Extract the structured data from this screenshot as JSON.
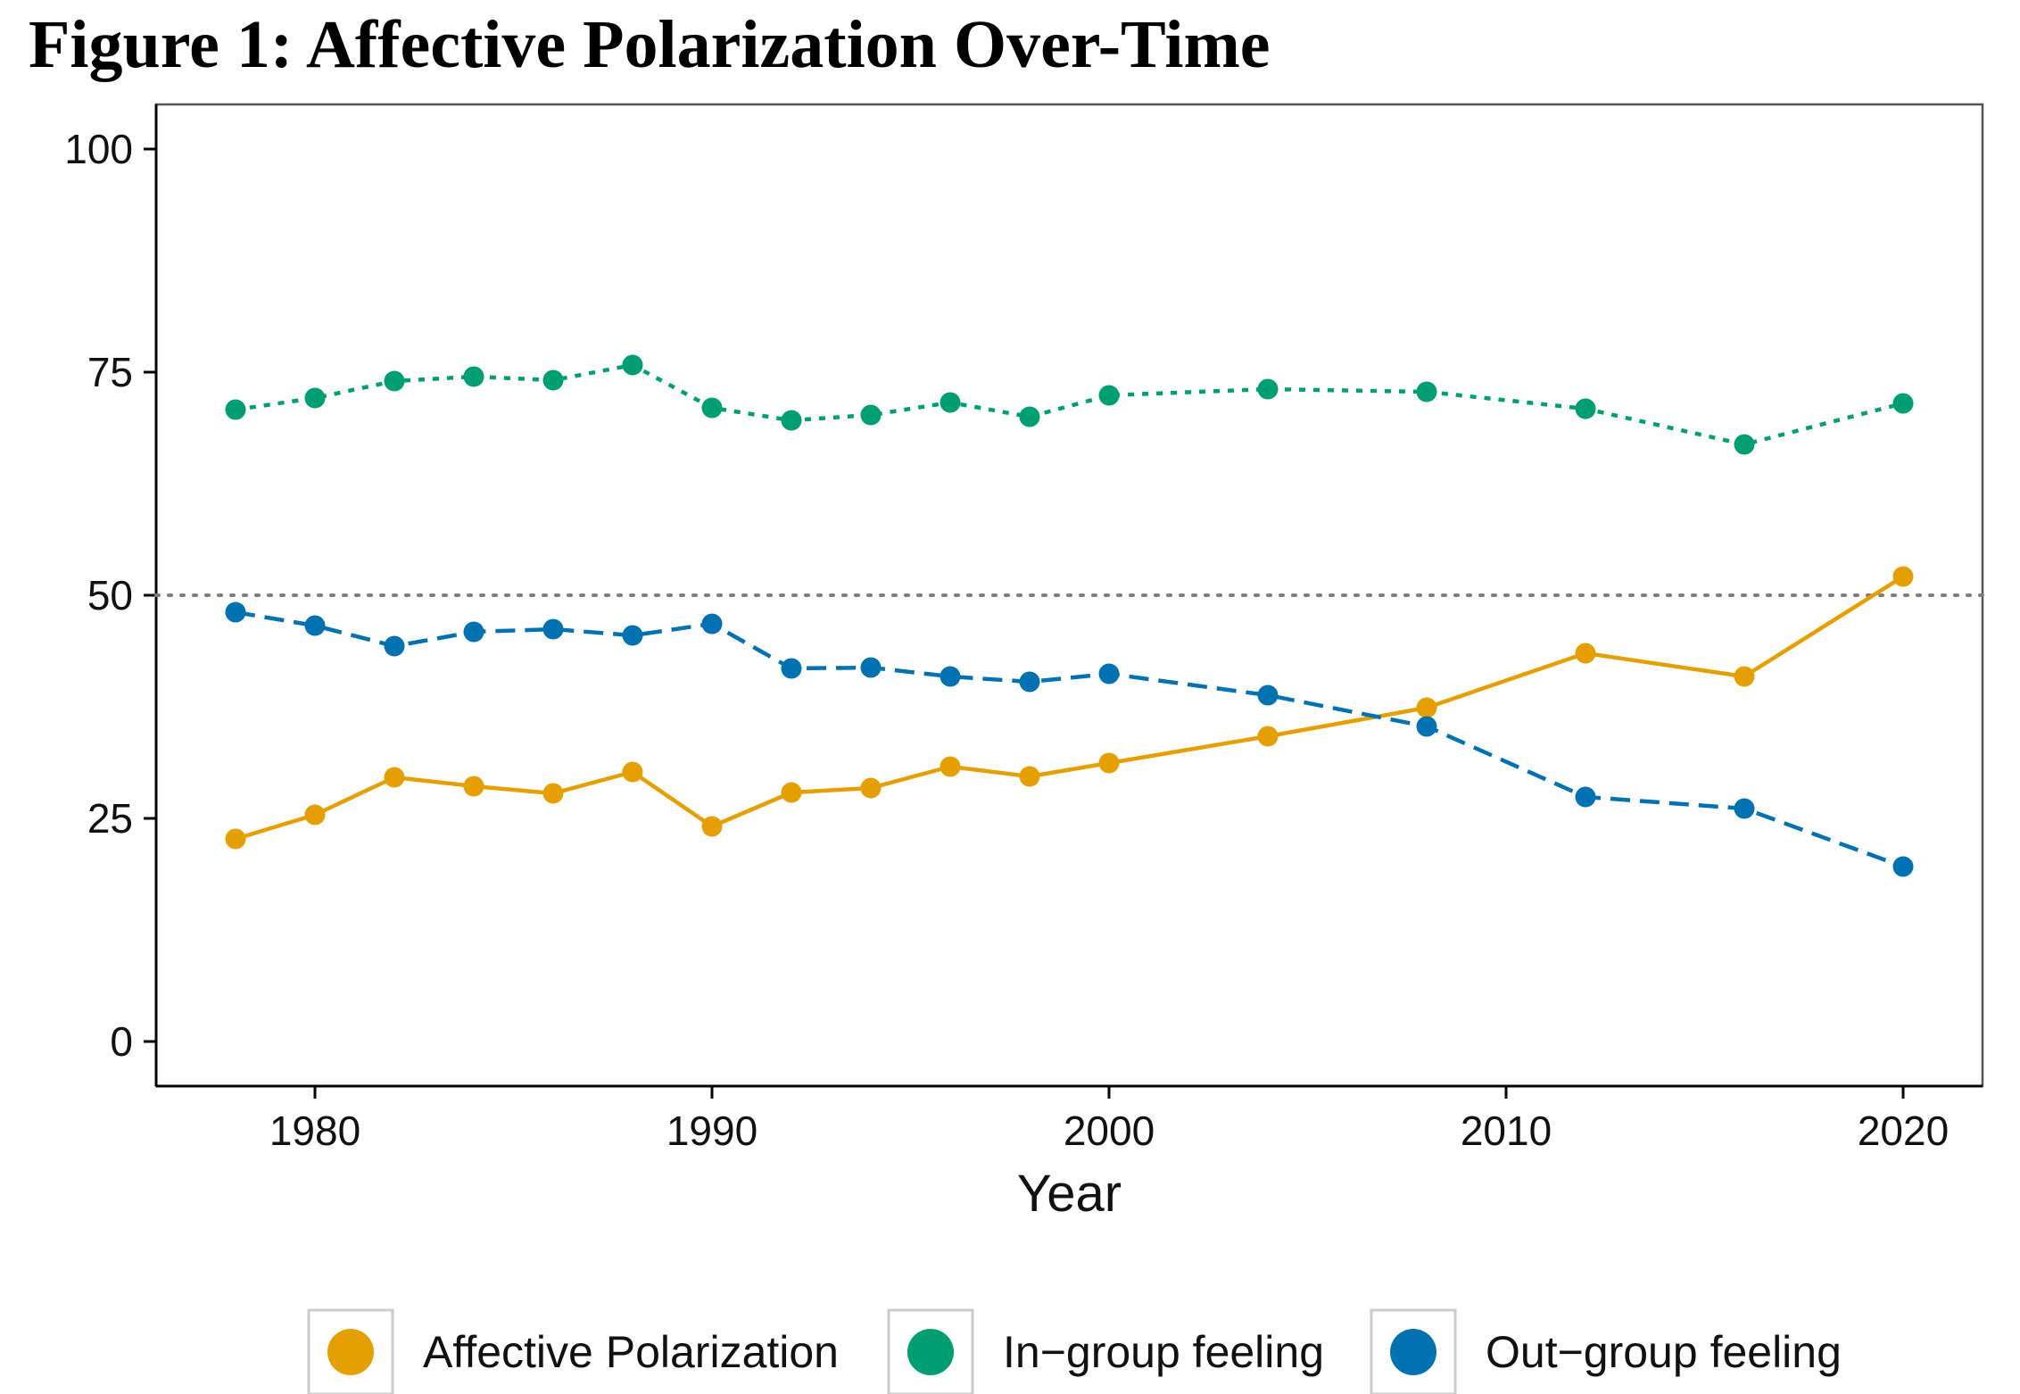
{
  "title": "Figure 1: Affective Polarization Over-Time",
  "chart_data": {
    "type": "line",
    "title": "Figure 1: Affective Polarization Over-Time",
    "xlabel": "Year",
    "ylabel": "",
    "xlim": [
      1976,
      2022
    ],
    "ylim": [
      -5,
      105
    ],
    "xticks": [
      1980,
      1990,
      2000,
      2010,
      2020
    ],
    "yticks": [
      0,
      25,
      50,
      75,
      100
    ],
    "x": [
      1978,
      1980,
      1982,
      1984,
      1986,
      1988,
      1990,
      1992,
      1994,
      1996,
      1998,
      2000,
      2004,
      2008,
      2012,
      2016,
      2020
    ],
    "reference_line": {
      "y": 50,
      "style": "dotted",
      "color": "#7f7f7f"
    },
    "grid": false,
    "legend_position": "bottom",
    "series": [
      {
        "name": "Affective Polarization",
        "color": "#E69F00",
        "line_style": "solid",
        "values": [
          22.7,
          25.4,
          29.6,
          28.6,
          27.8,
          30.2,
          24.1,
          27.9,
          28.4,
          30.8,
          29.7,
          31.2,
          34.2,
          37.4,
          43.5,
          40.9,
          52.1
        ]
      },
      {
        "name": "In−group feeling",
        "color": "#009E73",
        "line_style": "dotted",
        "values": [
          70.8,
          72.1,
          74.0,
          74.5,
          74.1,
          75.8,
          71.0,
          69.6,
          70.2,
          71.6,
          70.0,
          72.4,
          73.1,
          72.8,
          70.9,
          66.9,
          71.5
        ]
      },
      {
        "name": "Out−group feeling",
        "color": "#0072B2",
        "line_style": "dashed",
        "values": [
          48.1,
          46.6,
          44.3,
          45.9,
          46.2,
          45.5,
          46.8,
          41.8,
          41.9,
          40.9,
          40.3,
          41.2,
          38.8,
          35.3,
          27.4,
          26.1,
          19.6
        ]
      }
    ]
  }
}
